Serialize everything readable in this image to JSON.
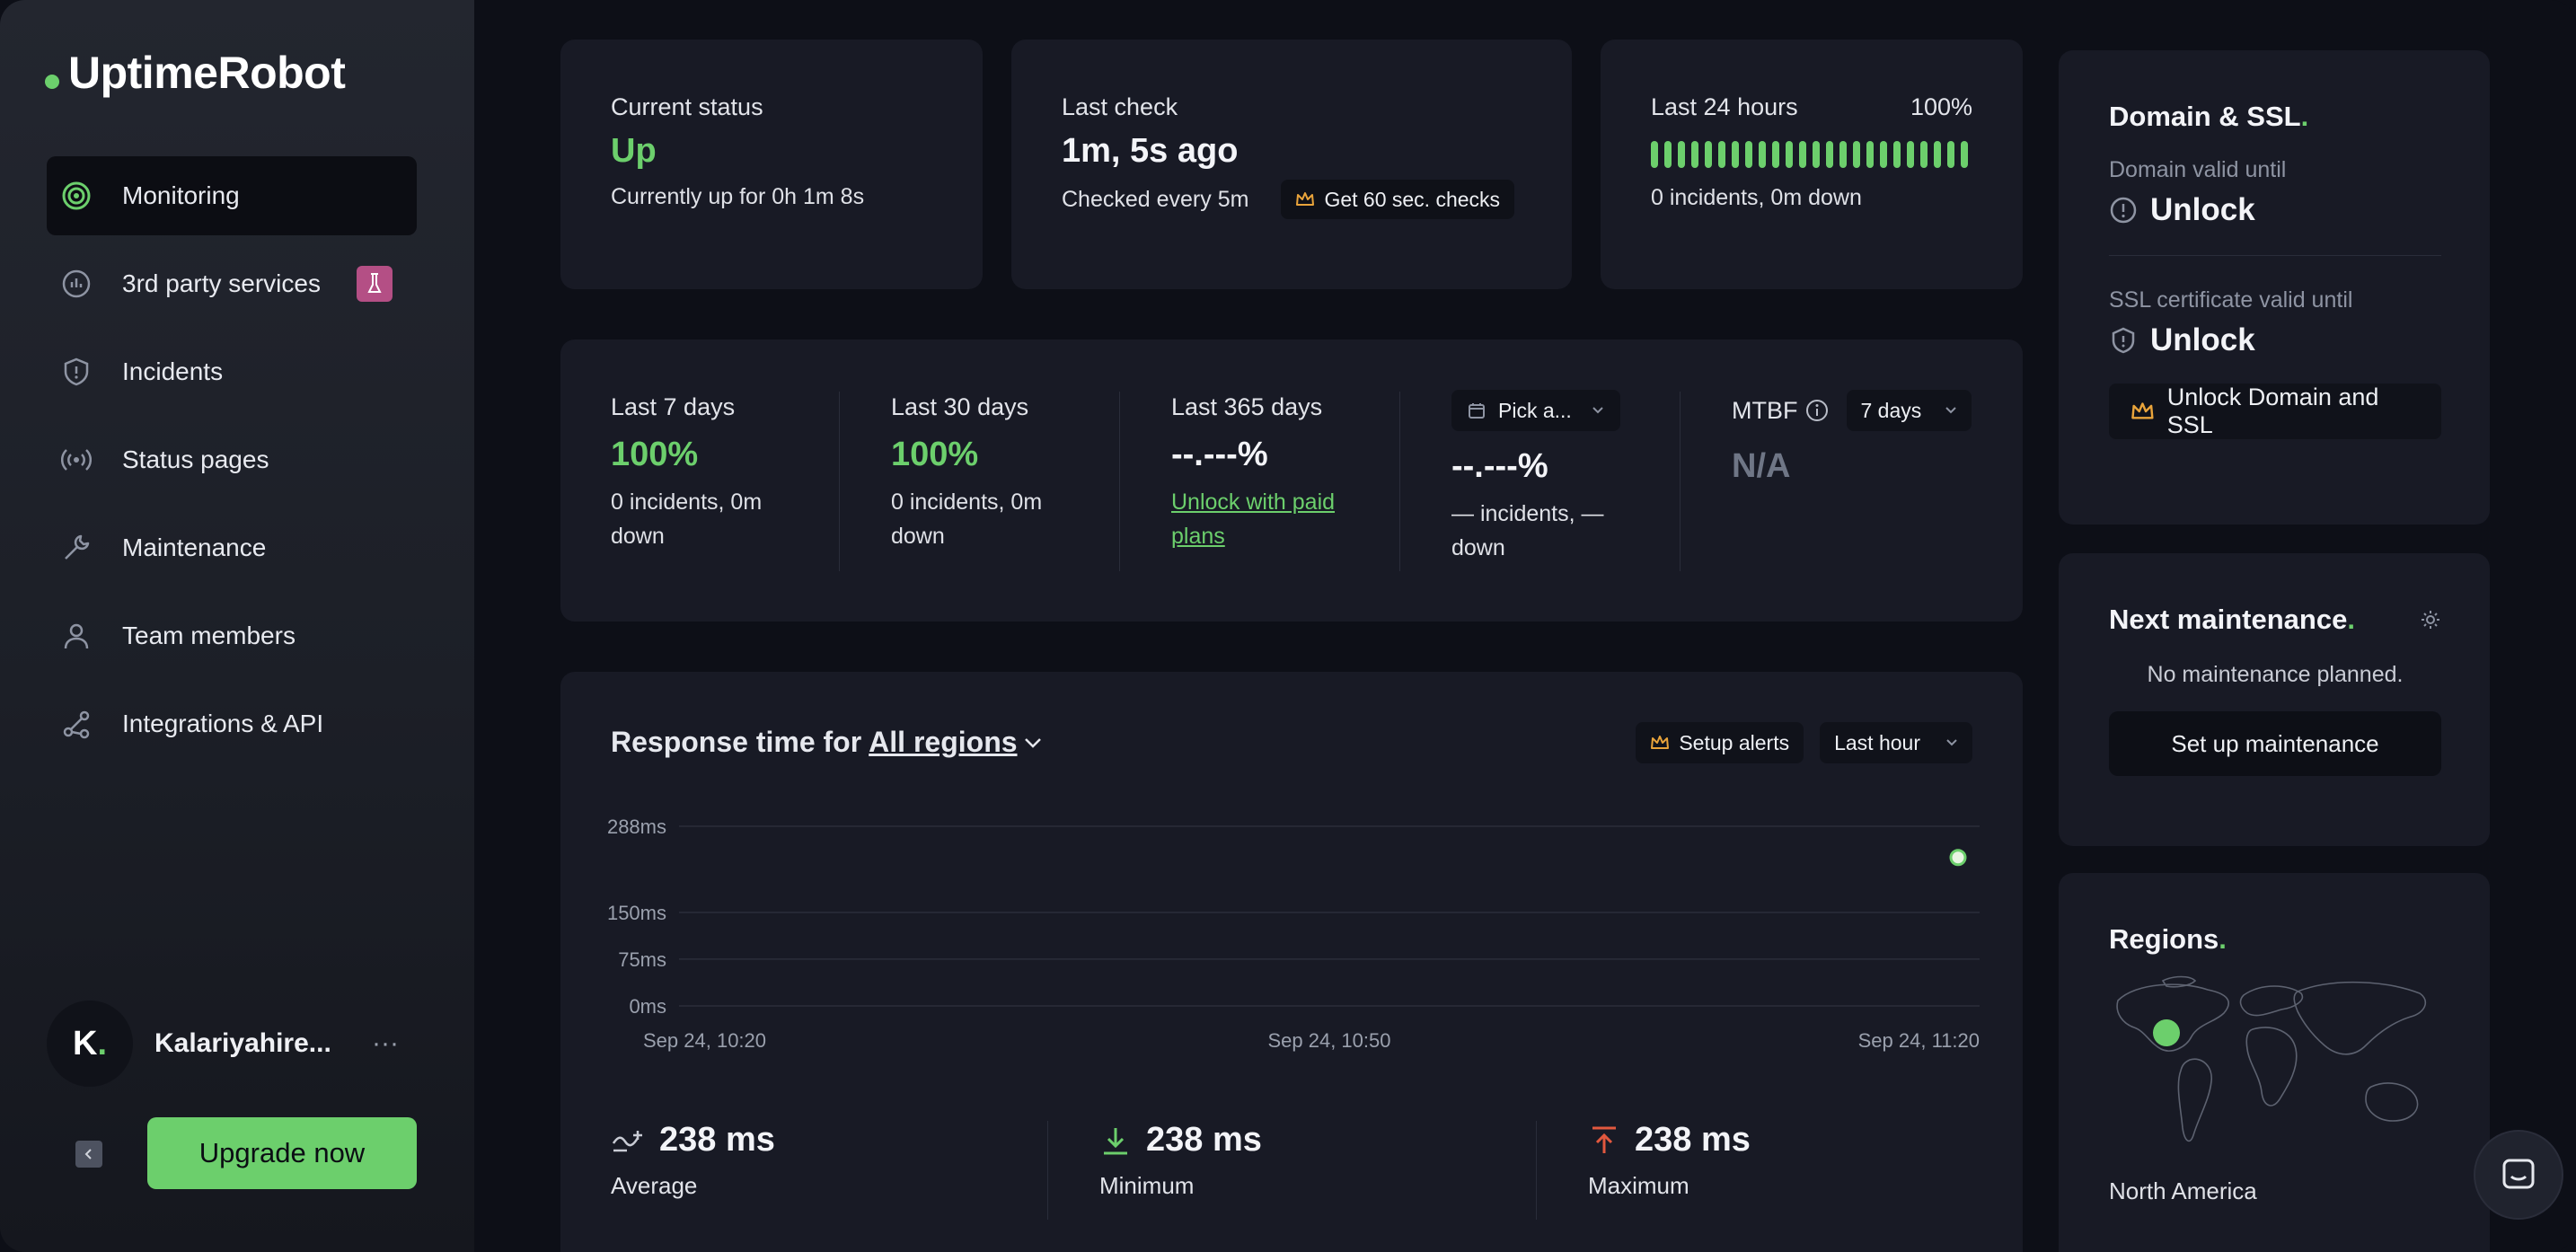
{
  "sidebar": {
    "logo": "UptimeRobot",
    "items": [
      {
        "label": "Monitoring",
        "icon": "target-icon"
      },
      {
        "label": "3rd party services",
        "icon": "cloud-check-icon"
      },
      {
        "label": "Incidents",
        "icon": "shield-alert-icon"
      },
      {
        "label": "Status pages",
        "icon": "broadcast-icon"
      },
      {
        "label": "Maintenance",
        "icon": "wrench-icon"
      },
      {
        "label": "Team members",
        "icon": "user-icon"
      },
      {
        "label": "Integrations & API",
        "icon": "share-nodes-icon"
      }
    ],
    "user": {
      "initial": "K",
      "name": "Kalariyahire...",
      "more": "···"
    },
    "upgrade_label": "Upgrade now"
  },
  "status": {
    "current_label": "Current status",
    "current_value": "Up",
    "current_sub": "Currently up for 0h 1m 8s",
    "last_check_label": "Last check",
    "last_check_value": "1m, 5s ago",
    "last_check_sub": "Checked every 5m",
    "last_check_pill": "Get 60 sec. checks",
    "last24_label": "Last 24 hours",
    "last24_pct": "100%",
    "last24_sub": "0 incidents, 0m down"
  },
  "periods": {
    "p7": {
      "label": "Last 7 days",
      "value": "100%",
      "sub": "0 incidents, 0m down"
    },
    "p30": {
      "label": "Last 30 days",
      "value": "100%",
      "sub": "0 incidents, 0m down"
    },
    "p365": {
      "label": "Last 365 days",
      "value": "--.---%",
      "link": "Unlock with paid plans"
    },
    "custom": {
      "picker": "Pick a...",
      "value": "--.---%",
      "sub": "— incidents, — down"
    },
    "mtbf": {
      "label": "MTBF",
      "range": "7 days",
      "value": "N/A"
    }
  },
  "response": {
    "title": "Response time for",
    "region": "All regions",
    "alerts_label": "Setup alerts",
    "range_label": "Last hour",
    "y_ticks": [
      "288ms",
      "150ms",
      "75ms",
      "0ms"
    ],
    "x_ticks": [
      "Sep 24, 10:20",
      "Sep 24, 10:50",
      "Sep 24, 11:20"
    ],
    "avg_value": "238 ms",
    "avg_label": "Average",
    "min_value": "238 ms",
    "min_label": "Minimum",
    "max_value": "238 ms",
    "max_label": "Maximum"
  },
  "chart_data": {
    "type": "scatter",
    "x": [
      "Sep 24, 11:20"
    ],
    "y": [
      238
    ],
    "ylabel": "",
    "yticks": [
      0,
      75,
      150,
      288
    ],
    "xticks": [
      "Sep 24, 10:20",
      "Sep 24, 10:50",
      "Sep 24, 11:20"
    ],
    "ylim": [
      0,
      288
    ],
    "grid": true
  },
  "domain_ssl": {
    "title": "Domain & SSL",
    "domain_label": "Domain valid until",
    "domain_value": "Unlock",
    "ssl_label": "SSL certificate valid until",
    "ssl_value": "Unlock",
    "button": "Unlock Domain and SSL"
  },
  "maintenance": {
    "title": "Next maintenance",
    "empty": "No maintenance planned.",
    "button": "Set up maintenance"
  },
  "regions": {
    "title": "Regions",
    "region_name": "North America"
  },
  "colors": {
    "accent": "#6ccf6c",
    "bg": "#0d0f17",
    "card": "#181a25",
    "alert": "#e2583e",
    "pink": "#b44f85"
  }
}
